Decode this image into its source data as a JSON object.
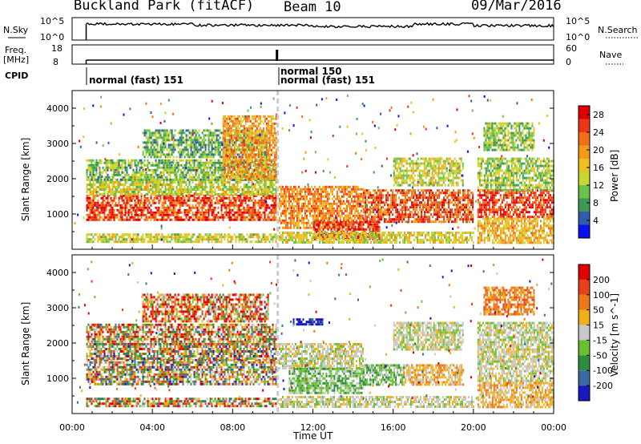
{
  "header": {
    "title": "Buckland Park (fitACF)",
    "beam": "Beam 10",
    "date": "09/Mar/2016"
  },
  "panels": {
    "nsky_label": "N.Sky",
    "nsearch_label": "N.Search",
    "freq_label": "Freq.",
    "freq_unit": "[MHz]",
    "nave_label": "Nave",
    "cpid_label": "CPID",
    "nsky_ticks": [
      "10^5",
      "10^0"
    ],
    "nsearch_ticks": [
      "10^5",
      "10^0"
    ],
    "freq_ticks": [
      "18",
      "8"
    ],
    "nave_ticks": [
      "60",
      "0"
    ],
    "cpid_entries": [
      "normal (fast) 151",
      "normal 150",
      "normal (fast) 151"
    ]
  },
  "chart_data": [
    {
      "type": "heatmap",
      "title": "Power",
      "ylabel": "Slant Range [km]",
      "xlabel": "",
      "ylim": [
        0,
        4500
      ],
      "y_ticks": [
        1000,
        2000,
        3000,
        4000
      ],
      "colorbar": {
        "label": "Power [dB]",
        "ticks": [
          4,
          8,
          12,
          16,
          20,
          24,
          28
        ],
        "colors": [
          "#0a10f0",
          "#2f5ea8",
          "#3c9a52",
          "#6ac24a",
          "#c8d830",
          "#f0c020",
          "#f59a18",
          "#f07018",
          "#ec3818",
          "#e00000"
        ]
      },
      "bands": [
        {
          "t0": 0.7,
          "t1": 10.2,
          "r0": 850,
          "r1": 1550,
          "level": 26
        },
        {
          "t0": 0.7,
          "t1": 10.2,
          "r0": 1550,
          "r1": 2000,
          "level": 14
        },
        {
          "t0": 0.7,
          "t1": 10.2,
          "r0": 2000,
          "r1": 2550,
          "level": 10
        },
        {
          "t0": 3.5,
          "t1": 9.8,
          "r0": 2600,
          "r1": 3400,
          "level": 9
        },
        {
          "t0": 0.7,
          "t1": 10.2,
          "r0": 200,
          "r1": 450,
          "level": 14
        },
        {
          "t0": 7.5,
          "t1": 10.2,
          "r0": 2000,
          "r1": 3800,
          "level": 20
        },
        {
          "t0": 10.3,
          "t1": 14.5,
          "r0": 600,
          "r1": 1800,
          "level": 22
        },
        {
          "t0": 12.0,
          "t1": 15.3,
          "r0": 300,
          "r1": 800,
          "level": 27
        },
        {
          "t0": 14.5,
          "t1": 20.0,
          "r0": 800,
          "r1": 1700,
          "level": 25
        },
        {
          "t0": 16.0,
          "t1": 19.5,
          "r0": 1800,
          "r1": 2600,
          "level": 14
        },
        {
          "t0": 10.3,
          "t1": 20.0,
          "r0": 200,
          "r1": 500,
          "level": 15
        },
        {
          "t0": 20.2,
          "t1": 24.0,
          "r0": 900,
          "r1": 1700,
          "level": 27
        },
        {
          "t0": 20.2,
          "t1": 24.0,
          "r0": 1700,
          "r1": 2600,
          "level": 12
        },
        {
          "t0": 20.2,
          "t1": 24.0,
          "r0": 200,
          "r1": 900,
          "level": 18
        },
        {
          "t0": 20.5,
          "t1": 23.0,
          "r0": 2800,
          "r1": 3600,
          "level": 11
        }
      ]
    },
    {
      "type": "heatmap",
      "title": "Velocity",
      "ylabel": "Slant Range [km]",
      "xlabel": "Time UT",
      "ylim": [
        0,
        4500
      ],
      "y_ticks": [
        1000,
        2000,
        3000,
        4000
      ],
      "x_ticks": [
        "00:00",
        "04:00",
        "08:00",
        "12:00",
        "16:00",
        "20:00",
        "00:00"
      ],
      "colorbar": {
        "label": "Velocity [m s^-1]",
        "ticks": [
          200,
          100,
          50,
          15,
          -15,
          -50,
          -100,
          -200
        ],
        "colors": [
          "#1818c0",
          "#3a6aa0",
          "#2f8c3c",
          "#68c030",
          "#c8c8c8",
          "#f0b018",
          "#ec7818",
          "#e84018",
          "#e00000"
        ]
      },
      "bands": [
        {
          "t0": 0.7,
          "t1": 10.2,
          "r0": 850,
          "r1": 1550,
          "level": 4
        },
        {
          "t0": 0.7,
          "t1": 10.2,
          "r0": 1550,
          "r1": 2000,
          "level": 4
        },
        {
          "t0": 0.7,
          "t1": 10.2,
          "r0": 2000,
          "r1": 2550,
          "level": 5
        },
        {
          "t0": 3.5,
          "t1": 9.8,
          "r0": 2600,
          "r1": 3400,
          "level": 6
        },
        {
          "t0": 0.7,
          "t1": 10.2,
          "r0": 200,
          "r1": 450,
          "level": 5
        },
        {
          "t0": 10.3,
          "t1": 14.5,
          "r0": 1300,
          "r1": 2000,
          "level": 4
        },
        {
          "t0": 10.8,
          "t1": 14.5,
          "r0": 600,
          "r1": 1300,
          "level": 3
        },
        {
          "t0": 14.5,
          "t1": 16.5,
          "r0": 800,
          "r1": 1400,
          "level": 3
        },
        {
          "t0": 16.5,
          "t1": 19.5,
          "r0": 800,
          "r1": 1400,
          "level": 5
        },
        {
          "t0": 16.0,
          "t1": 19.5,
          "r0": 1800,
          "r1": 2600,
          "level": 4
        },
        {
          "t0": 10.3,
          "t1": 20.0,
          "r0": 200,
          "r1": 500,
          "level": 4
        },
        {
          "t0": 20.2,
          "t1": 24.0,
          "r0": 900,
          "r1": 2600,
          "level": 4
        },
        {
          "t0": 20.2,
          "t1": 24.0,
          "r0": 200,
          "r1": 900,
          "level": 5
        },
        {
          "t0": 11.0,
          "t1": 12.5,
          "r0": 2500,
          "r1": 2700,
          "level": 0
        },
        {
          "t0": 20.5,
          "t1": 23.0,
          "r0": 2800,
          "r1": 3600,
          "level": 6
        }
      ]
    }
  ]
}
